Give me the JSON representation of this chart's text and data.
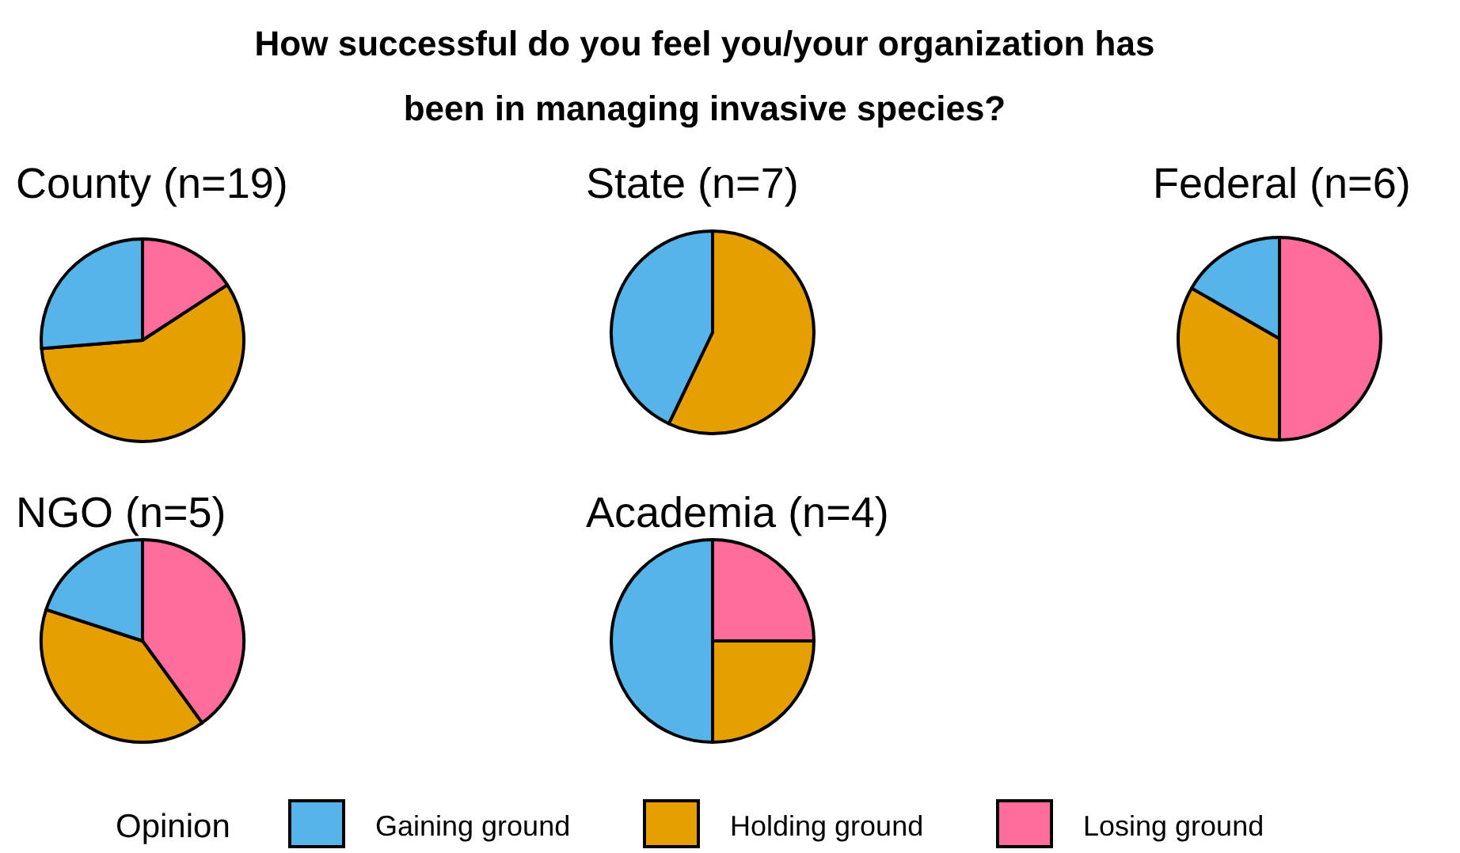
{
  "chart_data": [
    {
      "type": "other",
      "title": "How successful do you feel you/your organization has been in managing invasive species?"
    },
    {
      "type": "pie",
      "subtitle": "County (n=19)",
      "categories": [
        "Gaining ground",
        "Holding ground",
        "Losing ground"
      ],
      "values": [
        26.3,
        57.9,
        15.8
      ],
      "colors": [
        "#56b4e9",
        "#e69f00",
        "#ff6d9c"
      ],
      "legend": "bottom",
      "legend_title": "Opinion"
    },
    {
      "type": "pie",
      "subtitle": "State (n=7)",
      "categories": [
        null,
        null,
        null
      ],
      "values": [
        42.9,
        57.1,
        0
      ],
      "colors": [
        "#56b4e9",
        "#e69f00",
        "#ff6d9c"
      ]
    },
    {
      "type": "pie",
      "subtitle": "Federal (n=6)",
      "categories": [
        null,
        null,
        null
      ],
      "values": [
        16.7,
        33.3,
        50
      ],
      "colors": [
        "#56b4e9",
        "#e69f00",
        "#ff6d9c"
      ]
    },
    {
      "type": "pie",
      "subtitle": "NGO (n=5)",
      "categories": [
        null,
        null,
        null
      ],
      "values": [
        20,
        40,
        40
      ],
      "colors": [
        "#56b4e9",
        "#e69f00",
        "#ff6d9c"
      ]
    },
    {
      "type": "pie",
      "subtitle": "Academia (n=4)",
      "categories": [
        null,
        null,
        null
      ],
      "values": [
        50,
        25,
        25
      ],
      "colors": [
        "#56b4e9",
        "#e69f00",
        "#ff6d9c"
      ]
    }
  ]
}
